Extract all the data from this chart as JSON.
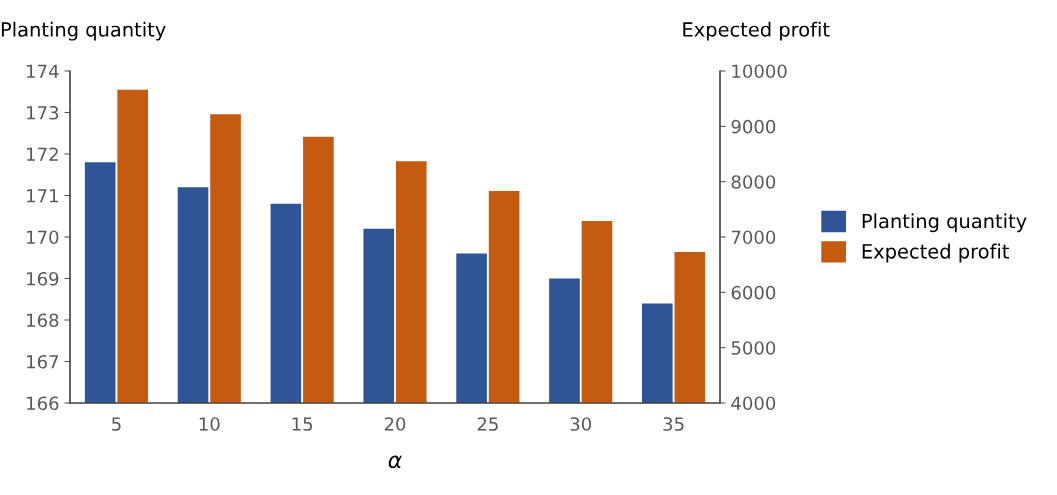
{
  "chart_data": {
    "type": "bar",
    "xlabel": "α",
    "ylabel": "Planting quantity",
    "y2label": "Expected profit",
    "categories": [
      "5",
      "10",
      "15",
      "20",
      "25",
      "30",
      "35"
    ],
    "series": [
      {
        "name": "Planting quantity",
        "color": "#2f5597",
        "values": [
          171.8,
          171.2,
          170.8,
          170.2,
          169.6,
          169.0,
          168.4
        ]
      },
      {
        "name": "Expected profit",
        "color": "#c55a11",
        "axis": "y2",
        "values": [
          9660,
          9220,
          8810,
          8370,
          7830,
          7290,
          6730
        ]
      }
    ],
    "ylim": [
      166,
      174
    ],
    "yticks": [
      166,
      167,
      168,
      169,
      170,
      171,
      172,
      173,
      174
    ],
    "y2lim": [
      4000,
      10000
    ],
    "y2ticks": [
      4000,
      5000,
      6000,
      7000,
      8000,
      9000,
      10000
    ],
    "grid": false,
    "legend": "right"
  }
}
